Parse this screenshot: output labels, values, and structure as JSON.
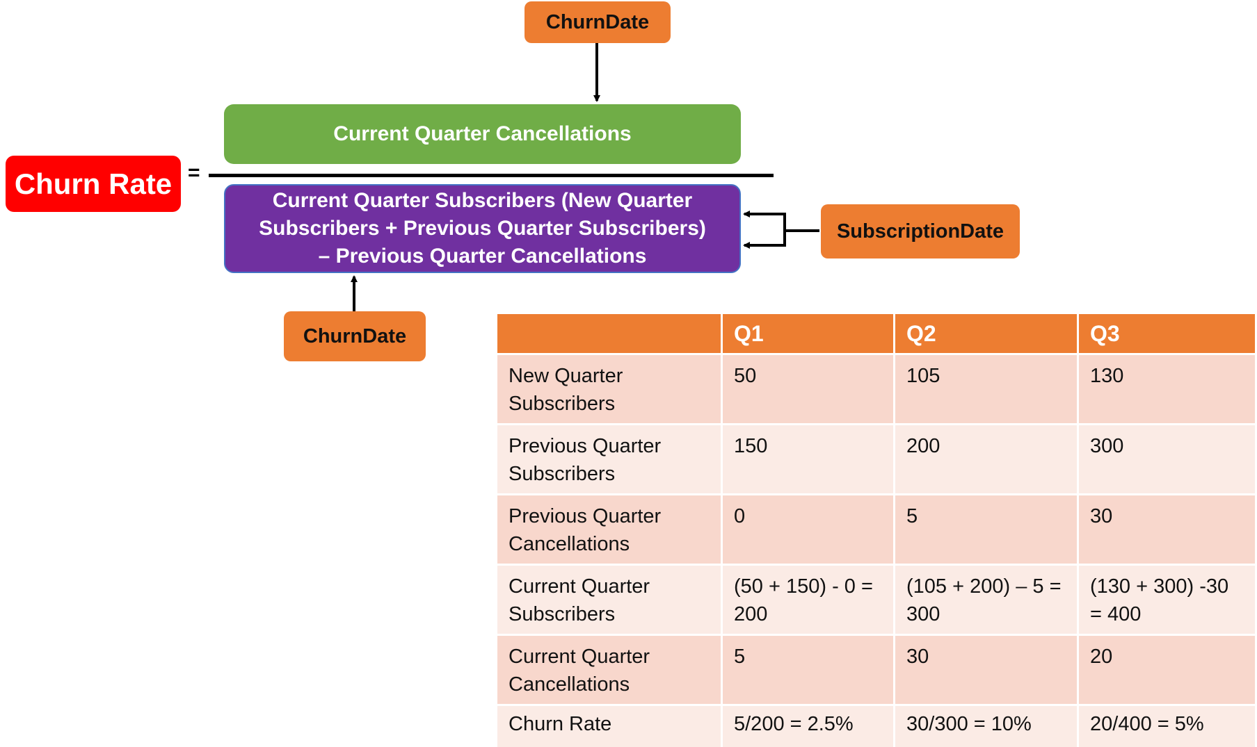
{
  "top_source": {
    "label": "ChurnDate"
  },
  "numerator": {
    "label": "Current Quarter Cancellations"
  },
  "result": {
    "label": "Churn Rate"
  },
  "equals_sign": "=",
  "denominator": {
    "line1": "Current Quarter Subscribers (New Quarter",
    "line2": "Subscribers + Previous Quarter Subscribers)",
    "line3": "– Previous Quarter Cancellations"
  },
  "side_source": {
    "label": "SubscriptionDate"
  },
  "bottom_source": {
    "label": "ChurnDate"
  },
  "colors": {
    "orange": "#ED7D31",
    "green": "#70AD47",
    "purple": "#7030A0",
    "red": "#FF0000",
    "row_dark": "#F8D7CC",
    "row_light": "#FBEBE5"
  },
  "table": {
    "headers": [
      "",
      "Q1",
      "Q2",
      "Q3"
    ],
    "rows": [
      {
        "label": "New Quarter Subscribers",
        "q1": "50",
        "q2": "105",
        "q3": "130"
      },
      {
        "label": "Previous Quarter Subscribers",
        "q1": "150",
        "q2": "200",
        "q3": "300"
      },
      {
        "label": "Previous Quarter Cancellations",
        "q1": "0",
        "q2": "5",
        "q3": "30"
      },
      {
        "label": "Current Quarter Subscribers",
        "q1": "(50 + 150) - 0 = 200",
        "q2": "(105 + 200) – 5 = 300",
        "q3": "(130 + 300) -30 = 400"
      },
      {
        "label": "Current Quarter Cancellations",
        "q1": "5",
        "q2": "30",
        "q3": "20"
      },
      {
        "label": "Churn Rate",
        "q1": "5/200 = 2.5%",
        "q2": "30/300 = 10%",
        "q3": "20/400 = 5%"
      }
    ]
  }
}
